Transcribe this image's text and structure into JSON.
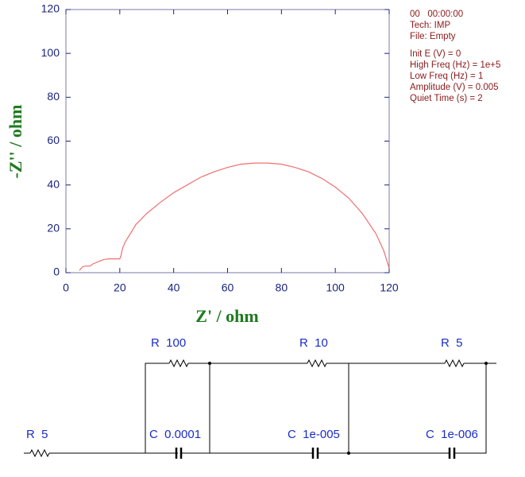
{
  "chart_data": {
    "type": "line",
    "xlabel": "Z' / ohm",
    "ylabel": "-Z'' / ohm",
    "x": [
      5,
      6,
      7,
      9,
      10,
      12,
      14,
      16,
      18,
      20,
      20.5,
      21,
      22,
      24,
      26,
      30,
      35,
      40,
      45,
      50,
      55,
      60,
      65,
      70,
      75,
      80,
      85,
      90,
      95,
      100,
      105,
      110,
      115,
      118,
      120
    ],
    "values": [
      1,
      2.5,
      3,
      3,
      4,
      5,
      6,
      6.3,
      6.3,
      6.3,
      8,
      11,
      14,
      18,
      22,
      27,
      32,
      36.5,
      40,
      43.5,
      46,
      48,
      49.5,
      50,
      50,
      49.5,
      48,
      46,
      43,
      39,
      34,
      27,
      18,
      10,
      2
    ],
    "color": "#f07070",
    "xlim": [
      0,
      120
    ],
    "ylim": [
      0,
      120
    ],
    "xticks": [
      0,
      20,
      40,
      60,
      80,
      100,
      120
    ],
    "yticks": [
      0,
      20,
      40,
      60,
      80,
      100,
      120
    ]
  },
  "info": [
    [
      "00   00:00:00",
      "Tech: IMP",
      "File: Empty"
    ],
    [
      "Init E (V) = 0",
      "High Freq (Hz) = 1e+5",
      "Low Freq (Hz) = 1",
      "Amplitude (V) = 0.005",
      "Quiet Time (s) = 2"
    ]
  ],
  "circuit": {
    "components": [
      "R  5",
      "R  100",
      "C  0.0001",
      "R  10",
      "C  1e-005",
      "R  5",
      "C  1e-006"
    ]
  }
}
